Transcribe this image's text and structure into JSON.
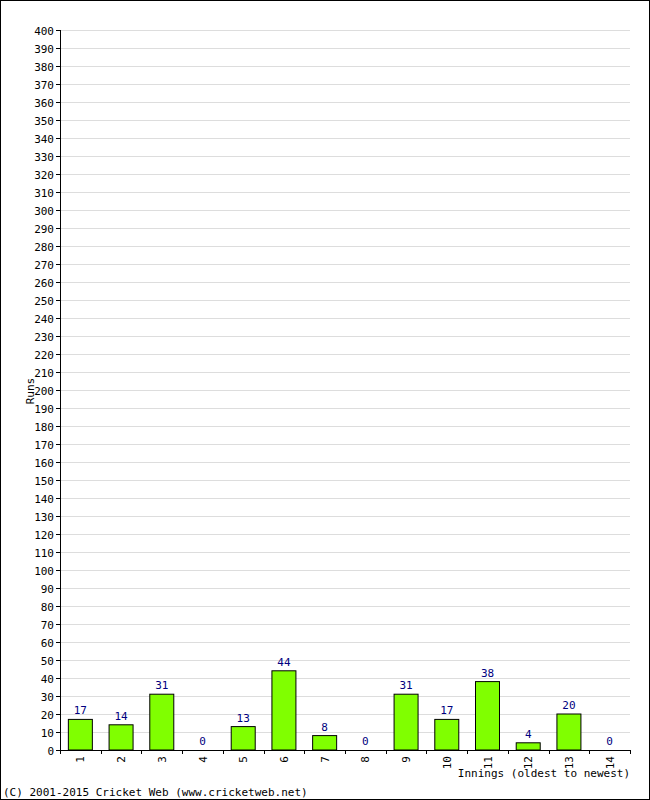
{
  "chart_data": {
    "type": "bar",
    "categories": [
      "1",
      "2",
      "3",
      "4",
      "5",
      "6",
      "7",
      "8",
      "9",
      "10",
      "11",
      "12",
      "13",
      "14"
    ],
    "values": [
      17,
      14,
      31,
      0,
      13,
      44,
      8,
      0,
      31,
      17,
      38,
      4,
      20,
      0
    ],
    "color": "#80ff00",
    "y_label": "Runs",
    "x_label": "Innings (oldest to newest)",
    "annotations": [
      "(C) 2001-2015 Cricket Web (www.cricketweb.net)"
    ],
    "ylim": [
      0,
      400
    ],
    "yticks": [
      0,
      10,
      20,
      30,
      40,
      50,
      60,
      70,
      80,
      90,
      100,
      110,
      120,
      130,
      140,
      150,
      160,
      170,
      180,
      190,
      200,
      210,
      220,
      230,
      240,
      250,
      260,
      270,
      280,
      290,
      300,
      310,
      320,
      330,
      340,
      350,
      360,
      370,
      380,
      390,
      400
    ],
    "grid": true,
    "data_labels": true
  }
}
